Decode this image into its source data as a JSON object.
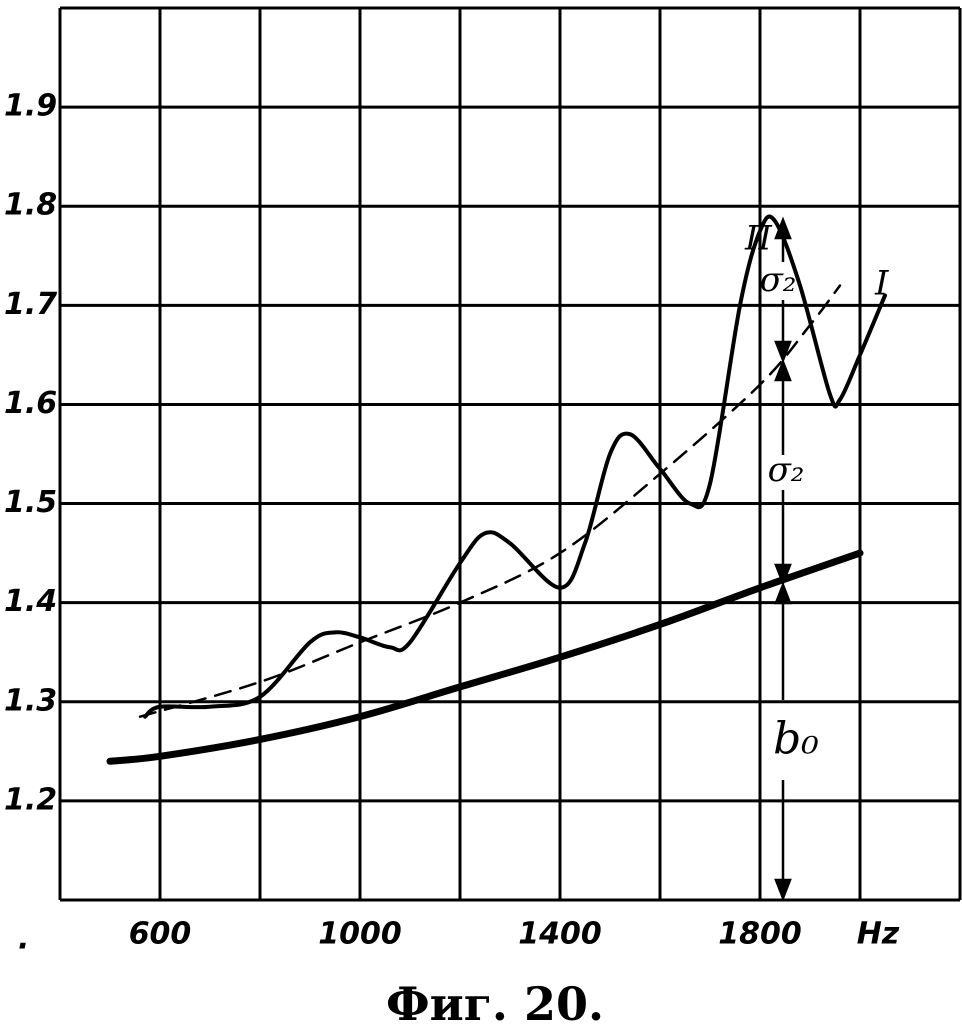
{
  "chart_data": {
    "type": "line",
    "caption": "Фиг. 20.",
    "x_unit": "Hz",
    "xlim": [
      400,
      2200
    ],
    "xticks": [
      600,
      1000,
      1400,
      1800
    ],
    "xgrid": [
      400,
      800,
      1200,
      1600,
      2000,
      2200
    ],
    "ylim": [
      1.1,
      2.0
    ],
    "yticks": [
      1.2,
      1.3,
      1.4,
      1.5,
      1.6,
      1.7,
      1.8,
      1.9
    ],
    "grid": true,
    "series": [
      {
        "name": "I",
        "color": "#000000",
        "style": "solid",
        "x": [
          570,
          600,
          700,
          800,
          900,
          950,
          1000,
          1060,
          1100,
          1200,
          1250,
          1300,
          1400,
          1450,
          1500,
          1540,
          1600,
          1660,
          1700,
          1760,
          1800,
          1830,
          1880,
          1940,
          1960,
          2000,
          2050
        ],
        "values": [
          1.285,
          1.295,
          1.295,
          1.305,
          1.36,
          1.37,
          1.365,
          1.355,
          1.36,
          1.44,
          1.47,
          1.46,
          1.415,
          1.46,
          1.55,
          1.57,
          1.535,
          1.5,
          1.52,
          1.7,
          1.775,
          1.785,
          1.72,
          1.61,
          1.605,
          1.65,
          1.71
        ]
      },
      {
        "name": "II",
        "color": "#000000",
        "style": "dashed",
        "x": [
          560,
          800,
          1000,
          1200,
          1400,
          1600,
          1800,
          1900,
          1960
        ],
        "values": [
          1.285,
          1.32,
          1.36,
          1.4,
          1.45,
          1.53,
          1.62,
          1.68,
          1.72
        ]
      },
      {
        "color": "#000000",
        "style": "thick",
        "x": [
          500,
          600,
          800,
          1000,
          1200,
          1400,
          1600,
          1800,
          2000
        ],
        "values": [
          1.24,
          1.245,
          1.262,
          1.285,
          1.315,
          1.345,
          1.378,
          1.415,
          1.45
        ]
      }
    ],
    "annotations": [
      "σ₂",
      "σ₂",
      "b₀"
    ]
  }
}
